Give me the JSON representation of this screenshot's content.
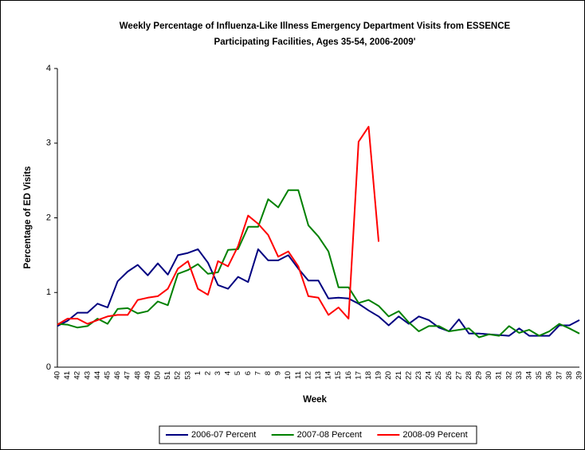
{
  "chart_data": {
    "type": "line",
    "title": [
      "Weekly Percentage of Influenza-Like Illness Emergency Department Visits from ESSENCE",
      "Participating Facilities, Ages 35-54, 2006-2009'"
    ],
    "x_label": "Week",
    "y_label": "Percentage of ED Visits",
    "categories": [
      "40",
      "41",
      "42",
      "43",
      "44",
      "45",
      "46",
      "47",
      "48",
      "49",
      "50",
      "51",
      "52",
      "53",
      "1",
      "2",
      "3",
      "4",
      "5",
      "6",
      "7",
      "8",
      "9",
      "10",
      "11",
      "12",
      "13",
      "14",
      "15",
      "16",
      "17",
      "18",
      "19",
      "20",
      "21",
      "22",
      "23",
      "24",
      "25",
      "26",
      "27",
      "28",
      "29",
      "30",
      "31",
      "32",
      "33",
      "34",
      "35",
      "36",
      "37",
      "38",
      "39"
    ],
    "ylim": [
      0,
      4
    ],
    "yticks": [
      0,
      1,
      2,
      3,
      4
    ],
    "grid": false,
    "legend": "bottom",
    "series": [
      {
        "name": "2006-07 Percent",
        "color": "#000080",
        "values": [
          0.55,
          0.62,
          0.73,
          0.73,
          0.85,
          0.8,
          1.15,
          1.28,
          1.37,
          1.23,
          1.39,
          1.24,
          1.5,
          1.53,
          1.58,
          1.4,
          1.1,
          1.05,
          1.21,
          1.14,
          1.58,
          1.43,
          1.43,
          1.5,
          1.32,
          1.16,
          1.16,
          0.92,
          0.93,
          0.92,
          0.85,
          0.76,
          0.68,
          0.56,
          0.68,
          0.58,
          0.68,
          0.63,
          0.53,
          0.48,
          0.64,
          0.45,
          0.45,
          0.44,
          0.43,
          0.42,
          0.52,
          0.42,
          0.42,
          0.42,
          0.56,
          0.56,
          0.63
        ]
      },
      {
        "name": "2007-08 Percent",
        "color": "#008000",
        "values": [
          0.58,
          0.57,
          0.53,
          0.55,
          0.65,
          0.58,
          0.78,
          0.79,
          0.72,
          0.75,
          0.88,
          0.83,
          1.25,
          1.3,
          1.38,
          1.25,
          1.27,
          1.57,
          1.58,
          1.88,
          1.88,
          2.25,
          2.14,
          2.37,
          2.37,
          1.9,
          1.75,
          1.55,
          1.07,
          1.07,
          0.86,
          0.9,
          0.82,
          0.68,
          0.75,
          0.6,
          0.48,
          0.55,
          0.55,
          0.48,
          0.5,
          0.52,
          0.4,
          0.44,
          0.42,
          0.55,
          0.46,
          0.5,
          0.42,
          0.48,
          0.58,
          0.52,
          0.45
        ]
      },
      {
        "name": "2008-09 Percent",
        "color": "#ff0000",
        "values": [
          0.57,
          0.65,
          0.65,
          0.58,
          0.63,
          0.68,
          0.7,
          0.7,
          0.9,
          0.93,
          0.95,
          1.05,
          1.32,
          1.42,
          1.05,
          0.97,
          1.42,
          1.35,
          1.62,
          2.03,
          1.92,
          1.77,
          1.48,
          1.55,
          1.35,
          0.95,
          0.93,
          0.7,
          0.8,
          0.65,
          3.02,
          3.22,
          1.68,
          null,
          null,
          null,
          null,
          null,
          null,
          null,
          null,
          null,
          null,
          null,
          null,
          null,
          null,
          null,
          null,
          null,
          null,
          null,
          null
        ]
      }
    ]
  }
}
